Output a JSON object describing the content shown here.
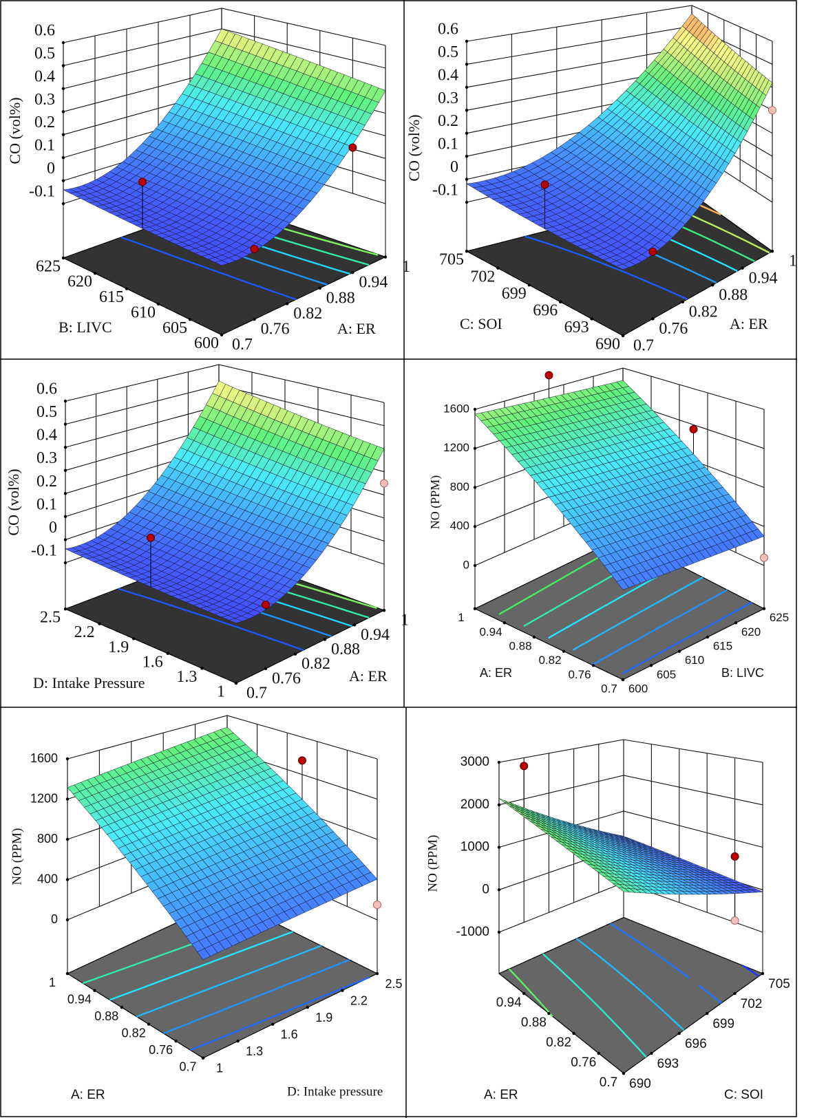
{
  "chart_data": [
    {
      "type": "surface3d",
      "zlabel": "CO (vol%)",
      "zticks": [
        -0.1,
        0,
        0.1,
        0.2,
        0.3,
        0.4,
        0.5,
        0.6
      ],
      "left_axis": {
        "label": "B: LIVC",
        "range": [
          600,
          625
        ],
        "ticks": [
          600,
          605,
          610,
          615,
          620,
          625
        ]
      },
      "right_axis": {
        "label": "A: ER",
        "range": [
          0.7,
          1
        ],
        "ticks": [
          0.7,
          0.76,
          0.82,
          0.88,
          0.94,
          1
        ]
      },
      "surface": {
        "left_values": [
          600,
          612.5,
          625
        ],
        "right_values": [
          0.7,
          0.85,
          1
        ],
        "z": [
          [
            -0.07,
            0.02,
            0.4
          ],
          [
            -0.06,
            0.04,
            0.45
          ],
          [
            -0.04,
            0.06,
            0.5
          ]
        ]
      },
      "contour_levels": [
        0,
        0.1,
        0.2,
        0.3,
        0.4
      ],
      "color_range": [
        -0.1,
        0.55
      ],
      "floor_color": "#333333",
      "design_points": [
        {
          "left": 612.5,
          "right": 0.7,
          "z": 0.13,
          "position": "above"
        },
        {
          "left": 600,
          "right": 0.76,
          "z": -0.06,
          "position": "above"
        },
        {
          "left": 600,
          "right": 0.94,
          "z": 0.2,
          "position": "above"
        }
      ]
    },
    {
      "type": "surface3d",
      "zlabel": "CO (vol%)",
      "zticks": [
        -0.1,
        0,
        0.1,
        0.2,
        0.3,
        0.4,
        0.5,
        0.6
      ],
      "left_axis": {
        "label": "C: SOI",
        "range": [
          690,
          705
        ],
        "ticks": [
          690,
          693,
          696,
          699,
          702,
          705
        ]
      },
      "right_axis": {
        "label": "A: ER",
        "range": [
          0.7,
          1
        ],
        "ticks": [
          0.7,
          0.76,
          0.82,
          0.88,
          0.94,
          1
        ]
      },
      "surface": {
        "left_values": [
          690,
          697.5,
          705
        ],
        "right_values": [
          0.7,
          0.85,
          1
        ],
        "z": [
          [
            -0.06,
            0.03,
            0.42
          ],
          [
            -0.05,
            0.06,
            0.48
          ],
          [
            -0.02,
            0.1,
            0.56
          ]
        ]
      },
      "contour_levels": [
        0,
        0.1,
        0.2,
        0.3,
        0.4,
        0.5
      ],
      "color_range": [
        -0.1,
        0.5
      ],
      "floor_color": "#333333",
      "design_points": [
        {
          "left": 697.5,
          "right": 0.7,
          "z": 0.13,
          "position": "above"
        },
        {
          "left": 690,
          "right": 0.76,
          "z": -0.05,
          "position": "above"
        },
        {
          "left": 690,
          "right": 1,
          "z": 0.3,
          "position": "below"
        }
      ]
    },
    {
      "type": "surface3d",
      "zlabel": "CO (vol%)",
      "zticks": [
        -0.1,
        0,
        0.1,
        0.2,
        0.3,
        0.4,
        0.5,
        0.6
      ],
      "left_axis": {
        "label": "D: Intake Pressure",
        "range": [
          1,
          2.5
        ],
        "ticks": [
          1,
          1.3,
          1.6,
          1.9,
          2.2,
          2.5
        ]
      },
      "right_axis": {
        "label": "A: ER",
        "range": [
          0.7,
          1
        ],
        "ticks": [
          0.7,
          0.76,
          0.82,
          0.88,
          0.94,
          1
        ]
      },
      "surface": {
        "left_values": [
          1,
          1.75,
          2.5
        ],
        "right_values": [
          0.7,
          0.85,
          1
        ],
        "z": [
          [
            -0.07,
            0.02,
            0.4
          ],
          [
            -0.06,
            0.04,
            0.45
          ],
          [
            -0.04,
            0.07,
            0.52
          ]
        ]
      },
      "contour_levels": [
        0,
        0.1,
        0.2,
        0.3,
        0.4,
        0.5
      ],
      "color_range": [
        -0.1,
        0.55
      ],
      "floor_color": "#333333",
      "design_points": [
        {
          "left": 1.75,
          "right": 0.7,
          "z": 0.14,
          "position": "above"
        },
        {
          "left": 1,
          "right": 0.76,
          "z": -0.05,
          "position": "above"
        },
        {
          "left": 1,
          "right": 1,
          "z": 0.25,
          "position": "below"
        }
      ]
    },
    {
      "type": "surface3d",
      "zlabel": "NO (PPM)",
      "zticks": [
        0,
        400,
        800,
        1200,
        1600
      ],
      "left_axis": {
        "label": "A: ER",
        "range": [
          0.7,
          1
        ],
        "ticks": [
          0.7,
          0.76,
          0.82,
          0.88,
          0.94,
          1
        ]
      },
      "right_axis": {
        "label": "B: LIVC",
        "range": [
          600,
          625
        ],
        "ticks": [
          600,
          605,
          610,
          615,
          620,
          625
        ]
      },
      "surface": {
        "left_values": [
          0.7,
          0.85,
          1
        ],
        "right_values": [
          600,
          612.5,
          625
        ],
        "z": [
          [
            350,
            325,
            300
          ],
          [
            950,
            910,
            875
          ],
          [
            1550,
            1500,
            1450
          ]
        ]
      },
      "contour_levels": [
        400,
        600,
        800,
        1000,
        1200,
        1400
      ],
      "color_range": [
        0,
        2000
      ],
      "floor_color": "#666666",
      "design_points": [
        {
          "left": 1,
          "right": 612.5,
          "z": 1750,
          "position": "above"
        },
        {
          "left": 0.85,
          "right": 625,
          "z": 1150,
          "position": "above"
        },
        {
          "left": 0.7,
          "right": 625,
          "z": 80,
          "position": "below"
        }
      ]
    },
    {
      "type": "surface3d",
      "zlabel": "NO (PPM)",
      "zticks": [
        0,
        400,
        800,
        1200,
        1600
      ],
      "left_axis": {
        "label": "A: ER",
        "range": [
          0.7,
          1
        ],
        "ticks": [
          0.7,
          0.76,
          0.82,
          0.88,
          0.94,
          1
        ]
      },
      "right_axis": {
        "label": "D: Intake pressure",
        "range": [
          1,
          2.5
        ],
        "ticks": [
          1,
          1.3,
          1.6,
          1.9,
          2.2,
          2.5
        ]
      },
      "surface": {
        "left_values": [
          0.7,
          0.85,
          1
        ],
        "right_values": [
          1,
          1.75,
          2.5
        ],
        "z": [
          [
            306,
            355,
            404
          ],
          [
            810,
            870,
            934
          ],
          [
            1315,
            1390,
            1464
          ]
        ]
      },
      "contour_levels": [
        400,
        600,
        800,
        1000,
        1200
      ],
      "color_range": [
        0,
        2000
      ],
      "floor_color": "#666666",
      "design_points": [
        {
          "left": 0.85,
          "right": 2.5,
          "z": 1350,
          "position": "above"
        },
        {
          "left": 1,
          "right": 1.6,
          "z": 900,
          "position": "below"
        },
        {
          "left": 0.7,
          "right": 2.5,
          "z": 150,
          "position": "below"
        }
      ]
    },
    {
      "type": "surface3d",
      "zlabel": "NO (PPM)",
      "zticks": [
        -1000,
        0,
        1000,
        2000,
        3000
      ],
      "left_axis": {
        "label": "A: ER",
        "range": [
          0.7,
          1
        ],
        "ticks": [
          0.7,
          0.76,
          0.82,
          0.88,
          0.94
        ]
      },
      "right_axis": {
        "label": "C: SOI",
        "range": [
          690,
          705
        ],
        "ticks": [
          690,
          693,
          696,
          699,
          702,
          705
        ]
      },
      "surface": {
        "left_values": [
          0.7,
          0.85,
          1
        ],
        "right_values": [
          690,
          697.5,
          705
        ],
        "z": [
          [
            1800,
            875,
            -50
          ],
          [
            1975,
            1050,
            125
          ],
          [
            2150,
            1225,
            300
          ]
        ]
      },
      "contour_levels": [
        0,
        500,
        1000,
        1500,
        2000
      ],
      "color_range": [
        -200,
        2800
      ],
      "floor_color": "#666666",
      "design_points": [
        {
          "left": 1,
          "right": 693,
          "z": 2800,
          "position": "above"
        },
        {
          "left": 0.76,
          "right": 705,
          "z": 600,
          "position": "above"
        },
        {
          "left": 0.7,
          "right": 702,
          "z": -300,
          "position": "below"
        }
      ]
    }
  ]
}
